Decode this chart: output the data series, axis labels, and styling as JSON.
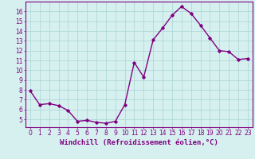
{
  "x": [
    0,
    1,
    2,
    3,
    4,
    5,
    6,
    7,
    8,
    9,
    10,
    11,
    12,
    13,
    14,
    15,
    16,
    17,
    18,
    19,
    20,
    21,
    22,
    23
  ],
  "y": [
    7.9,
    6.5,
    6.6,
    6.4,
    5.9,
    4.8,
    4.9,
    4.7,
    4.6,
    4.8,
    6.5,
    10.8,
    9.3,
    13.1,
    14.3,
    15.6,
    16.5,
    15.8,
    14.6,
    13.3,
    12.0,
    11.9,
    11.1,
    11.2
  ],
  "line_color": "#800080",
  "marker": "D",
  "marker_size": 1.8,
  "bg_color": "#d6f0f0",
  "grid_color": "#b0d8d8",
  "xlabel": "Windchill (Refroidissement éolien,°C)",
  "xlabel_fontsize": 6.5,
  "ylim": [
    4.2,
    17.0
  ],
  "xlim": [
    -0.5,
    23.5
  ],
  "yticks": [
    5,
    6,
    7,
    8,
    9,
    10,
    11,
    12,
    13,
    14,
    15,
    16
  ],
  "xticks": [
    0,
    1,
    2,
    3,
    4,
    5,
    6,
    7,
    8,
    9,
    10,
    11,
    12,
    13,
    14,
    15,
    16,
    17,
    18,
    19,
    20,
    21,
    22,
    23
  ],
  "tick_color": "#800080",
  "tick_fontsize": 5.5,
  "line_width": 1.0
}
